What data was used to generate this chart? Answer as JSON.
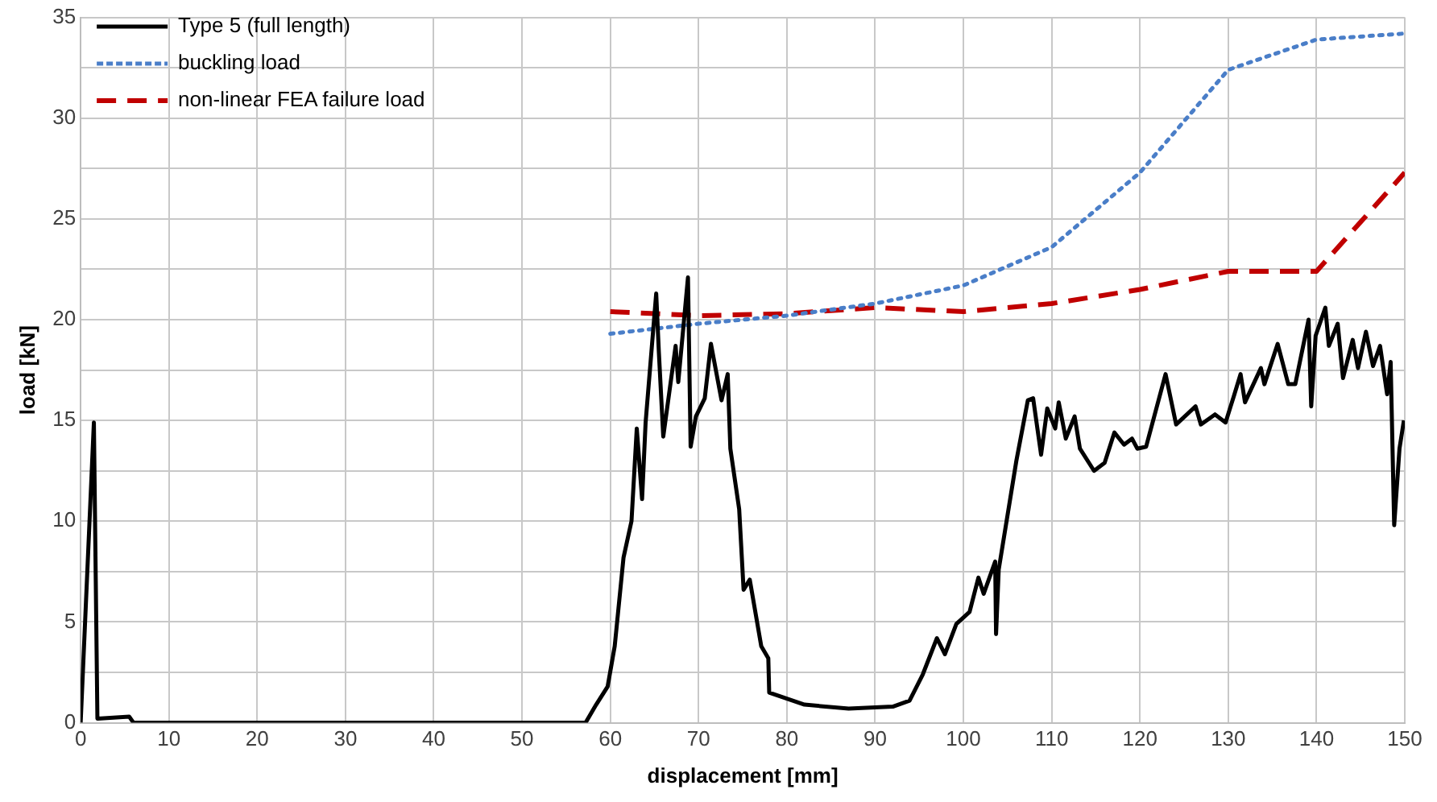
{
  "chart_data": {
    "type": "line",
    "xlabel": "displacement [mm]",
    "ylabel": "load [kN]",
    "xlim": [
      0,
      150
    ],
    "xticks": [
      0,
      10,
      20,
      30,
      40,
      50,
      60,
      70,
      80,
      90,
      100,
      110,
      120,
      130,
      140,
      150
    ],
    "ylim": [
      0,
      35
    ],
    "yticks": [
      0,
      {
        "value": 2.5,
        "label": null
      },
      5,
      {
        "value": 7.5,
        "label": null
      },
      10,
      {
        "value": 12.5,
        "label": null
      },
      15,
      {
        "value": 17.5,
        "label": null
      },
      20,
      {
        "value": 22.5,
        "label": null
      },
      25,
      {
        "value": 27.5,
        "label": null
      },
      30,
      {
        "value": 32.5,
        "label": null
      },
      35
    ],
    "grid": true,
    "legend": "top left",
    "marker": "none",
    "series": [
      {
        "name": "Type 5 (full length)",
        "color": "#000000",
        "line_style": "solid",
        "x": [
          0,
          1.5,
          1.9,
          5.5,
          6,
          57.2,
          58.4,
          59.7,
          60.5,
          61.5,
          62.4,
          63.0,
          63.6,
          64.0,
          65.2,
          65.5,
          66.0,
          67.4,
          67.7,
          68.8,
          69.1,
          69.7,
          70.7,
          71.4,
          72.6,
          73.3,
          73.6,
          74.6,
          75.1,
          75.8,
          77.1,
          77.9,
          78.0,
          82.0,
          87.0,
          92.0,
          93.9,
          95.4,
          97.0,
          97.9,
          99.2,
          100.7,
          101.7,
          102.3,
          103.6,
          103.7,
          104.0,
          106.0,
          107.3,
          107.9,
          108.8,
          109.5,
          110.4,
          110.8,
          111.6,
          112.6,
          113.2,
          114.8,
          116.0,
          117.1,
          118.2,
          119.1,
          119.7,
          120.7,
          122.9,
          124.1,
          126.3,
          126.9,
          128.5,
          129.7,
          130.7,
          131.4,
          131.9,
          133.7,
          134.1,
          135.6,
          136.8,
          137.6,
          139.1,
          139.4,
          139.9,
          141.0,
          141.4,
          142.4,
          143.0,
          144.1,
          144.7,
          145.6,
          146.4,
          147.2,
          148.0,
          148.4,
          148.8,
          149.4,
          149.9
        ],
        "values": [
          0,
          14.9,
          0.2,
          0.3,
          0,
          0,
          0.9,
          1.8,
          3.8,
          8.2,
          10.0,
          14.6,
          11.1,
          14.9,
          21.3,
          18.4,
          14.2,
          18.7,
          16.9,
          22.1,
          13.7,
          15.2,
          16.1,
          18.8,
          16.0,
          17.3,
          13.6,
          10.6,
          6.6,
          7.1,
          3.8,
          3.2,
          1.5,
          0.9,
          0.7,
          0.8,
          1.1,
          2.4,
          4.2,
          3.4,
          4.9,
          5.5,
          7.2,
          6.4,
          8.0,
          4.4,
          7.6,
          13.0,
          16.0,
          16.1,
          13.3,
          15.6,
          14.6,
          15.9,
          14.1,
          15.2,
          13.6,
          12.5,
          12.9,
          14.4,
          13.8,
          14.1,
          13.6,
          13.7,
          17.3,
          14.8,
          15.7,
          14.8,
          15.3,
          14.9,
          16.3,
          17.3,
          15.9,
          17.6,
          16.8,
          18.8,
          16.8,
          16.8,
          20.0,
          15.7,
          19.2,
          20.6,
          18.7,
          19.8,
          17.1,
          19.0,
          17.6,
          19.4,
          17.7,
          18.7,
          16.3,
          17.9,
          9.8,
          13.6,
          15.0
        ]
      },
      {
        "name": "buckling load",
        "color": "#4a7ec8",
        "line_style": "dotted",
        "x": [
          60,
          70,
          80,
          90,
          100,
          110,
          120,
          130,
          140,
          150
        ],
        "values": [
          19.3,
          19.8,
          20.2,
          20.8,
          21.7,
          23.6,
          27.3,
          32.4,
          33.9,
          34.2
        ]
      },
      {
        "name": "non-linear FEA failure load",
        "color": "#c00000",
        "line_style": "dashed",
        "x": [
          60,
          70,
          80,
          90,
          100,
          110,
          120,
          130,
          140,
          150
        ],
        "values": [
          20.4,
          20.2,
          20.3,
          20.6,
          20.4,
          20.8,
          21.5,
          22.4,
          22.4,
          27.3
        ]
      }
    ]
  }
}
